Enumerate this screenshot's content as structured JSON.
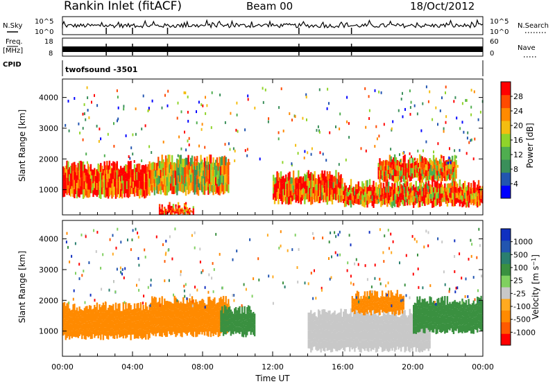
{
  "header": {
    "station": "Rankin Inlet (fitACF)",
    "beam": "Beam 00",
    "date": "18/Oct/2012"
  },
  "top_panels": {
    "nsky_label": "N.Sky",
    "nsky_ticks": [
      "10^5",
      "10^0"
    ],
    "nsearch_label": "N.Search",
    "nsearch_ticks": [
      "10^5",
      "10^0"
    ],
    "freq_label": "Freq.",
    "freq_unit": "[MHz]",
    "freq_ticks": [
      "18",
      "8"
    ],
    "nave_label": "Nave",
    "nave_ticks": [
      "60",
      "0"
    ],
    "cpid_label": "CPID",
    "cpid_value": "twofsound -3501"
  },
  "colors": {
    "power": [
      "#0000ff",
      "#2255b0",
      "#3a8f5a",
      "#4fae4f",
      "#8fd42a",
      "#f4bd10",
      "#ff8a00",
      "#ff4a00",
      "#ff0000"
    ],
    "velocity": [
      "#ff0000",
      "#ff5a00",
      "#ff8a00",
      "#ffaa20",
      "#c8c8c8",
      "#80d060",
      "#3a9040",
      "#2a7f6f",
      "#2255b0",
      "#1030c0"
    ]
  },
  "chart_data": [
    {
      "type": "heatmap",
      "panel": "power",
      "ylabel": "Slant Range [km]",
      "xlabel": "",
      "ylim": [
        180,
        4600
      ],
      "yticks": [
        "1000",
        "2000",
        "3000",
        "4000"
      ],
      "colorbar_label": "Power [dB]",
      "colorbar_ticks": [
        "4",
        "8",
        "12",
        "16",
        "20",
        "24",
        "28"
      ],
      "regions": [
        {
          "t0": 0.0,
          "t1": 5.0,
          "r0": 800,
          "r1": 1800,
          "value": 26
        },
        {
          "t0": 5.0,
          "t1": 9.5,
          "r0": 900,
          "r1": 2000,
          "value": 18
        },
        {
          "t0": 5.5,
          "t1": 7.5,
          "r0": 200,
          "r1": 450,
          "value": 27
        },
        {
          "t0": 12.0,
          "t1": 16.0,
          "r0": 600,
          "r1": 1500,
          "value": 24
        },
        {
          "t0": 16.0,
          "t1": 24.0,
          "r0": 500,
          "r1": 1200,
          "value": 22
        },
        {
          "t0": 18.0,
          "t1": 22.5,
          "r0": 1300,
          "r1": 2000,
          "value": 21
        }
      ]
    },
    {
      "type": "heatmap",
      "panel": "velocity",
      "ylabel": "Slant Range [km]",
      "xlabel": "Time UT",
      "ylim": [
        180,
        4600
      ],
      "yticks": [
        "1000",
        "2000",
        "3000",
        "4000"
      ],
      "xticks": [
        "00:00",
        "04:00",
        "08:00",
        "12:00",
        "16:00",
        "20:00",
        "00:00"
      ],
      "colorbar_label": "Velocity [m s^-1]",
      "colorbar_ticks": [
        "1000",
        "500",
        "100",
        "25",
        "-25",
        "-100",
        "-500",
        "-1000"
      ],
      "regions": [
        {
          "t0": 0.0,
          "t1": 5.0,
          "r0": 800,
          "r1": 1800,
          "value": -300
        },
        {
          "t0": 5.0,
          "t1": 9.5,
          "r0": 900,
          "r1": 2000,
          "value": -150
        },
        {
          "t0": 9.0,
          "t1": 11.0,
          "r0": 900,
          "r1": 1700,
          "value": 200
        },
        {
          "t0": 14.0,
          "t1": 21.0,
          "r0": 400,
          "r1": 1600,
          "value": 0
        },
        {
          "t0": 20.0,
          "t1": 24.0,
          "r0": 1000,
          "r1": 2000,
          "value": 300
        },
        {
          "t0": 16.5,
          "t1": 19.5,
          "r0": 1600,
          "r1": 2200,
          "value": -250
        }
      ]
    }
  ]
}
